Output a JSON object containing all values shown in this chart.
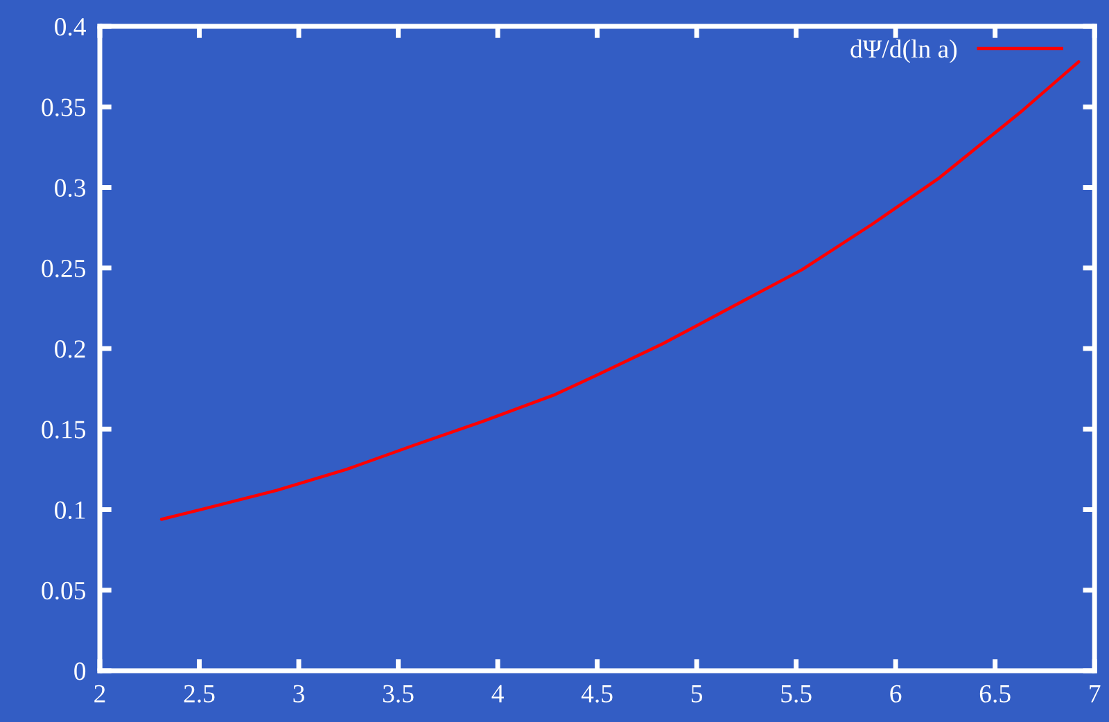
{
  "chart_data": {
    "type": "line",
    "x": [
      2.31,
      2.54,
      2.89,
      3.24,
      3.58,
      3.93,
      4.28,
      4.49,
      4.83,
      5.18,
      5.53,
      5.88,
      6.22,
      6.64,
      6.92
    ],
    "series": [
      {
        "name": "dΨ/d(ln a)",
        "color": "#ff0000",
        "values": [
          0.094,
          0.101,
          0.112,
          0.125,
          0.14,
          0.155,
          0.171,
          0.183,
          0.203,
          0.226,
          0.249,
          0.277,
          0.306,
          0.348,
          0.378
        ]
      }
    ],
    "xlim": [
      2,
      7
    ],
    "ylim": [
      0,
      0.4
    ],
    "xticks": [
      2,
      2.5,
      3,
      3.5,
      4,
      4.5,
      5,
      5.5,
      6,
      6.5,
      7
    ],
    "yticks": [
      0,
      0.05,
      0.1,
      0.15,
      0.2,
      0.25,
      0.3,
      0.35,
      0.4
    ],
    "legend": "top right",
    "grid": false
  }
}
